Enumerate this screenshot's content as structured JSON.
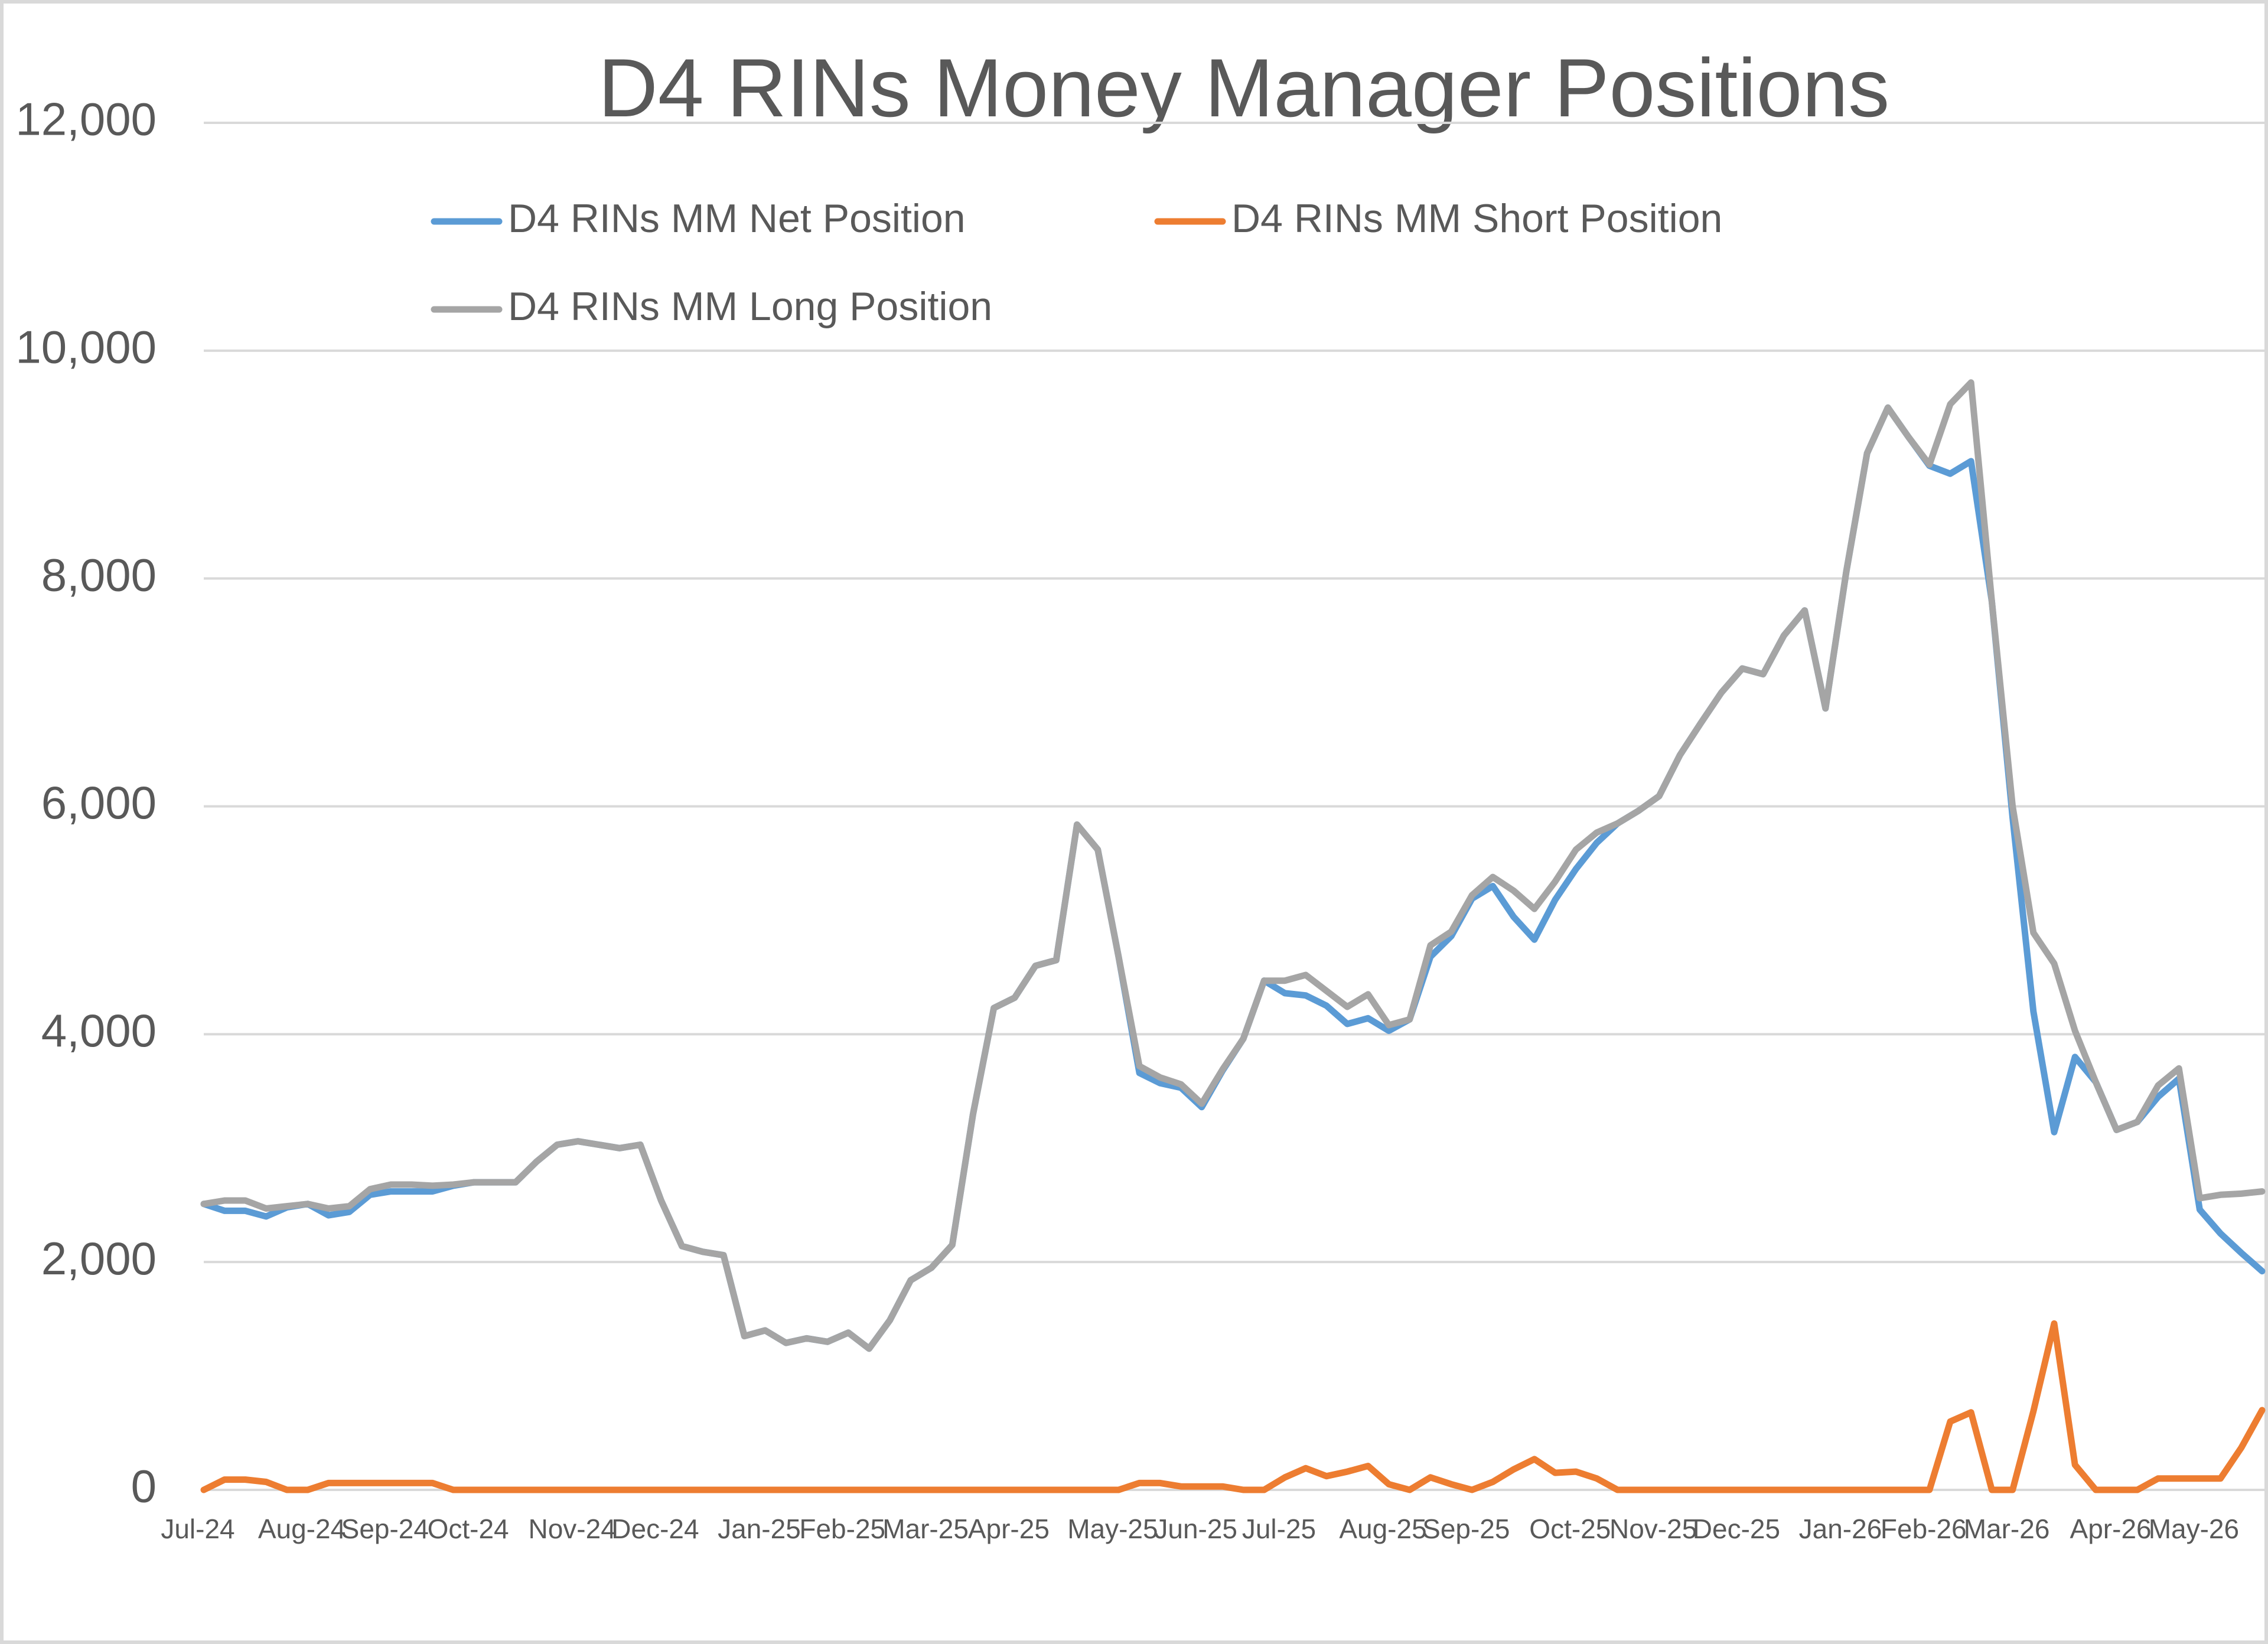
{
  "chart_data": {
    "type": "line",
    "title": "D4 RINs Money Manager Positions",
    "categories": [
      "Jul-24",
      null,
      null,
      null,
      null,
      "Aug-24",
      null,
      null,
      null,
      "Sep-24",
      null,
      null,
      null,
      "Oct-24",
      null,
      null,
      null,
      null,
      "Nov-24",
      null,
      null,
      null,
      "Dec-24",
      null,
      null,
      null,
      null,
      "Jan-25",
      null,
      null,
      null,
      "Feb-25",
      null,
      null,
      null,
      "Mar-25",
      null,
      null,
      null,
      "Apr-25",
      null,
      null,
      null,
      null,
      "May-25",
      null,
      null,
      null,
      "Jun-25",
      null,
      null,
      null,
      "Jul-25",
      null,
      null,
      null,
      null,
      "Aug-25",
      null,
      null,
      null,
      "Sep-25",
      null,
      null,
      null,
      null,
      "Oct-25",
      null,
      null,
      null,
      "Nov-25",
      null,
      null,
      null,
      "Dec-25",
      null,
      null,
      null,
      null,
      "Jan-26",
      null,
      null,
      null,
      "Feb-26",
      null,
      null,
      null,
      "Mar-26",
      null,
      null,
      null,
      null,
      "Apr-26",
      null,
      null,
      null,
      "May-26",
      null,
      null,
      null
    ],
    "series": [
      {
        "name": "D4 RINs MM Net Position",
        "color": "#5b9bd5",
        "values": [
          2510,
          2450,
          2450,
          2400,
          2480,
          2510,
          2410,
          2440,
          2590,
          2620,
          2620,
          2620,
          2670,
          2700,
          2700,
          2700,
          2880,
          3030,
          3060,
          3030,
          3000,
          3030,
          2540,
          2140,
          2090,
          2060,
          1350,
          1400,
          1290,
          1330,
          1300,
          1380,
          1240,
          1490,
          1840,
          1950,
          2150,
          3300,
          4230,
          4320,
          4600,
          4650,
          5840,
          5620,
          4680,
          3660,
          3570,
          3530,
          3360,
          3680,
          3960,
          4470,
          4360,
          4340,
          4250,
          4090,
          4140,
          4030,
          4130,
          4680,
          4860,
          5190,
          5300,
          5030,
          4830,
          5180,
          5450,
          5680,
          5850,
          5960,
          6090,
          6450,
          6730,
          7000,
          7210,
          7160,
          7500,
          7720,
          6860,
          8060,
          9100,
          9500,
          9240,
          8990,
          8920,
          9030,
          7800,
          5900,
          4200,
          3140,
          3800,
          3580,
          3160,
          3230,
          3450,
          3610,
          2460,
          2250,
          2080,
          1920
        ]
      },
      {
        "name": "D4 RINs MM Short Position",
        "color": "#ed7d31",
        "values": [
          0,
          90,
          90,
          70,
          0,
          0,
          60,
          60,
          60,
          60,
          60,
          60,
          0,
          0,
          0,
          0,
          0,
          0,
          0,
          0,
          0,
          0,
          0,
          0,
          0,
          0,
          0,
          0,
          0,
          0,
          0,
          0,
          0,
          0,
          0,
          0,
          0,
          0,
          0,
          0,
          0,
          0,
          0,
          0,
          0,
          60,
          60,
          30,
          30,
          30,
          0,
          0,
          110,
          190,
          120,
          160,
          210,
          50,
          0,
          110,
          50,
          0,
          70,
          180,
          270,
          150,
          160,
          100,
          0,
          0,
          0,
          0,
          0,
          0,
          0,
          0,
          0,
          0,
          0,
          0,
          0,
          0,
          0,
          0,
          600,
          680,
          0,
          0,
          690,
          1460,
          220,
          0,
          0,
          0,
          100,
          100,
          100,
          100,
          370,
          700
        ]
      },
      {
        "name": "D4 RINs MM Long Position",
        "color": "#a5a5a5",
        "values": [
          2510,
          2540,
          2540,
          2470,
          2490,
          2510,
          2470,
          2490,
          2640,
          2680,
          2680,
          2670,
          2680,
          2700,
          2700,
          2700,
          2880,
          3030,
          3060,
          3030,
          3000,
          3030,
          2540,
          2140,
          2090,
          2060,
          1350,
          1400,
          1290,
          1330,
          1300,
          1380,
          1240,
          1490,
          1840,
          1950,
          2150,
          3300,
          4230,
          4320,
          4600,
          4650,
          5840,
          5620,
          4680,
          3720,
          3620,
          3560,
          3390,
          3690,
          3960,
          4470,
          4470,
          4520,
          4380,
          4240,
          4350,
          4080,
          4130,
          4780,
          4900,
          5220,
          5380,
          5260,
          5100,
          5340,
          5620,
          5770,
          5850,
          5960,
          6090,
          6450,
          6730,
          7000,
          7210,
          7160,
          7500,
          7720,
          6860,
          8060,
          9100,
          9500,
          9240,
          9000,
          9530,
          9720,
          7800,
          6000,
          4890,
          4620,
          4030,
          3580,
          3160,
          3230,
          3550,
          3700,
          2560,
          2590,
          2600,
          2620
        ]
      }
    ],
    "ylim": [
      0,
      12000
    ],
    "yticks": [
      {
        "value": 0,
        "label": "0"
      },
      {
        "value": 2000,
        "label": "2,000"
      },
      {
        "value": 4000,
        "label": "4,000"
      },
      {
        "value": 6000,
        "label": "6,000"
      },
      {
        "value": 8000,
        "label": "8,000"
      },
      {
        "value": 10000,
        "label": "10,000"
      },
      {
        "value": 12000,
        "label": "12,000"
      }
    ],
    "grid": true,
    "legend": "top"
  }
}
